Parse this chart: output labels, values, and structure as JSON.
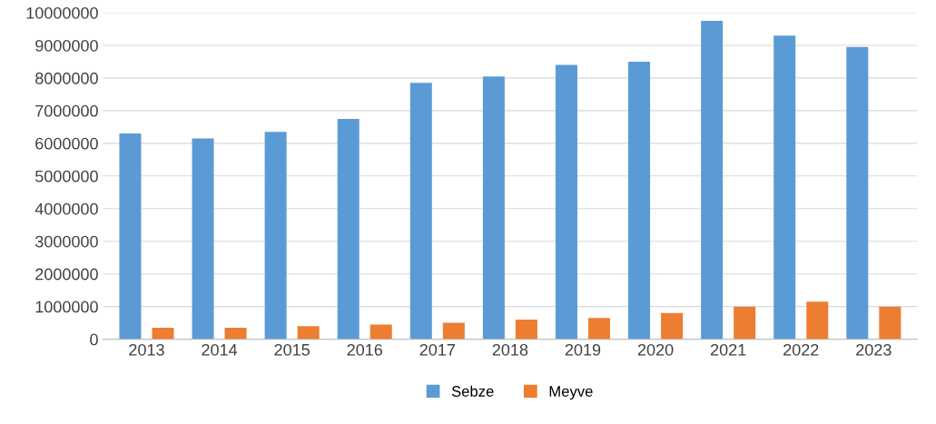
{
  "chart_data": {
    "type": "bar",
    "categories": [
      "2013",
      "2014",
      "2015",
      "2016",
      "2017",
      "2018",
      "2019",
      "2020",
      "2021",
      "2022",
      "2023"
    ],
    "series": [
      {
        "name": "Sebze",
        "color": "#5b9bd5",
        "values": [
          6300000,
          6150000,
          6350000,
          6750000,
          7850000,
          8050000,
          8400000,
          8500000,
          9750000,
          9300000,
          8950000
        ]
      },
      {
        "name": "Meyve",
        "color": "#ed7d31",
        "values": [
          350000,
          350000,
          400000,
          450000,
          500000,
          600000,
          650000,
          800000,
          1000000,
          1150000,
          1000000
        ]
      }
    ],
    "ylim": [
      0,
      10000000
    ],
    "yticks": [
      0,
      1000000,
      2000000,
      3000000,
      4000000,
      5000000,
      6000000,
      7000000,
      8000000,
      9000000,
      10000000
    ],
    "grid": "y",
    "legend": "bottom"
  }
}
